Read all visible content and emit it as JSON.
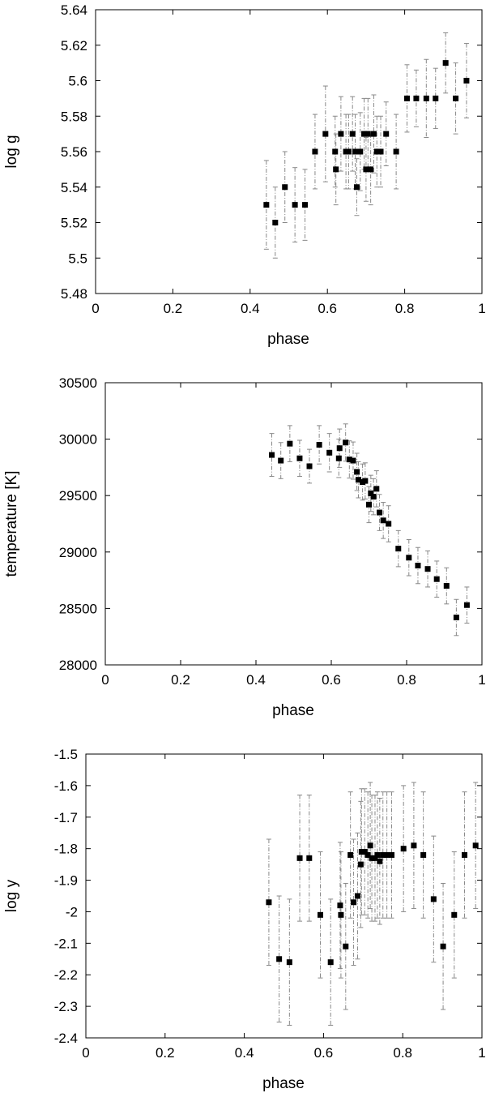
{
  "chart_data": [
    {
      "type": "scatter",
      "xlabel": "phase",
      "ylabel": "log g",
      "xlim": [
        0,
        1
      ],
      "ylim": [
        5.48,
        5.64
      ],
      "xticks": [
        0,
        0.2,
        0.4,
        0.6,
        0.8,
        1
      ],
      "xtick_labels": [
        "0",
        "0.2",
        "0.4",
        "0.6",
        "0.8",
        "1"
      ],
      "yticks": [
        5.48,
        5.5,
        5.52,
        5.54,
        5.56,
        5.58,
        5.6,
        5.62,
        5.64
      ],
      "ytick_labels": [
        "5.48",
        "5.5",
        "5.52",
        "5.54",
        "5.56",
        "5.58",
        "5.6",
        "5.62",
        "5.64"
      ],
      "grid": false,
      "series": [
        {
          "marker": "square",
          "color": "#000000",
          "errorbar_color": "#888888",
          "points": [
            {
              "x": 0.442,
              "y": 5.53,
              "err": 0.025
            },
            {
              "x": 0.465,
              "y": 5.52,
              "err": 0.02
            },
            {
              "x": 0.49,
              "y": 5.54,
              "err": 0.02
            },
            {
              "x": 0.516,
              "y": 5.53,
              "err": 0.021
            },
            {
              "x": 0.542,
              "y": 5.53,
              "err": 0.02
            },
            {
              "x": 0.568,
              "y": 5.56,
              "err": 0.021
            },
            {
              "x": 0.595,
              "y": 5.57,
              "err": 0.027
            },
            {
              "x": 0.62,
              "y": 5.56,
              "err": 0.02
            },
            {
              "x": 0.622,
              "y": 5.55,
              "err": 0.02
            },
            {
              "x": 0.635,
              "y": 5.57,
              "err": 0.021
            },
            {
              "x": 0.648,
              "y": 5.56,
              "err": 0.021
            },
            {
              "x": 0.655,
              "y": 5.56,
              "err": 0.021
            },
            {
              "x": 0.665,
              "y": 5.57,
              "err": 0.021
            },
            {
              "x": 0.672,
              "y": 5.56,
              "err": 0.021
            },
            {
              "x": 0.676,
              "y": 5.54,
              "err": 0.016
            },
            {
              "x": 0.685,
              "y": 5.56,
              "err": 0.022
            },
            {
              "x": 0.695,
              "y": 5.57,
              "err": 0.02
            },
            {
              "x": 0.7,
              "y": 5.55,
              "err": 0.018
            },
            {
              "x": 0.705,
              "y": 5.57,
              "err": 0.02
            },
            {
              "x": 0.712,
              "y": 5.55,
              "err": 0.02
            },
            {
              "x": 0.72,
              "y": 5.57,
              "err": 0.022
            },
            {
              "x": 0.728,
              "y": 5.56,
              "err": 0.02
            },
            {
              "x": 0.738,
              "y": 5.56,
              "err": 0.02
            },
            {
              "x": 0.752,
              "y": 5.57,
              "err": 0.018
            },
            {
              "x": 0.778,
              "y": 5.56,
              "err": 0.021
            },
            {
              "x": 0.806,
              "y": 5.59,
              "err": 0.019
            },
            {
              "x": 0.83,
              "y": 5.59,
              "err": 0.016
            },
            {
              "x": 0.856,
              "y": 5.59,
              "err": 0.022
            },
            {
              "x": 0.88,
              "y": 5.59,
              "err": 0.017
            },
            {
              "x": 0.906,
              "y": 5.61,
              "err": 0.017
            },
            {
              "x": 0.932,
              "y": 5.59,
              "err": 0.02
            },
            {
              "x": 0.96,
              "y": 5.6,
              "err": 0.021
            }
          ]
        }
      ]
    },
    {
      "type": "scatter",
      "xlabel": "phase",
      "ylabel": "temperature [K]",
      "xlim": [
        0,
        1
      ],
      "ylim": [
        28000,
        30500
      ],
      "xticks": [
        0,
        0.2,
        0.4,
        0.6,
        0.8,
        1
      ],
      "xtick_labels": [
        "0",
        "0.2",
        "0.4",
        "0.6",
        "0.8",
        "1"
      ],
      "yticks": [
        28000,
        28500,
        29000,
        29500,
        30000,
        30500
      ],
      "ytick_labels": [
        "28000",
        "28500",
        "29000",
        "29500",
        "30000",
        "30500"
      ],
      "grid": false,
      "series": [
        {
          "marker": "square",
          "color": "#000000",
          "errorbar_color": "#888888",
          "points": [
            {
              "x": 0.442,
              "y": 29860,
              "err": 190
            },
            {
              "x": 0.466,
              "y": 29810,
              "err": 160
            },
            {
              "x": 0.49,
              "y": 29960,
              "err": 160
            },
            {
              "x": 0.516,
              "y": 29830,
              "err": 160
            },
            {
              "x": 0.542,
              "y": 29760,
              "err": 150
            },
            {
              "x": 0.568,
              "y": 29950,
              "err": 170
            },
            {
              "x": 0.595,
              "y": 29880,
              "err": 170
            },
            {
              "x": 0.62,
              "y": 29830,
              "err": 170
            },
            {
              "x": 0.622,
              "y": 29920,
              "err": 170
            },
            {
              "x": 0.638,
              "y": 29970,
              "err": 165
            },
            {
              "x": 0.648,
              "y": 29820,
              "err": 165
            },
            {
              "x": 0.658,
              "y": 29810,
              "err": 165
            },
            {
              "x": 0.668,
              "y": 29710,
              "err": 165
            },
            {
              "x": 0.672,
              "y": 29640,
              "err": 160
            },
            {
              "x": 0.683,
              "y": 29620,
              "err": 160
            },
            {
              "x": 0.69,
              "y": 29630,
              "err": 160
            },
            {
              "x": 0.7,
              "y": 29420,
              "err": 160
            },
            {
              "x": 0.705,
              "y": 29520,
              "err": 160
            },
            {
              "x": 0.712,
              "y": 29490,
              "err": 160
            },
            {
              "x": 0.72,
              "y": 29560,
              "err": 160
            },
            {
              "x": 0.728,
              "y": 29350,
              "err": 160
            },
            {
              "x": 0.738,
              "y": 29280,
              "err": 160
            },
            {
              "x": 0.752,
              "y": 29250,
              "err": 160
            },
            {
              "x": 0.778,
              "y": 29030,
              "err": 160
            },
            {
              "x": 0.806,
              "y": 28950,
              "err": 160
            },
            {
              "x": 0.83,
              "y": 28880,
              "err": 160
            },
            {
              "x": 0.856,
              "y": 28850,
              "err": 160
            },
            {
              "x": 0.88,
              "y": 28760,
              "err": 160
            },
            {
              "x": 0.906,
              "y": 28700,
              "err": 160
            },
            {
              "x": 0.932,
              "y": 28420,
              "err": 160
            },
            {
              "x": 0.96,
              "y": 28530,
              "err": 160
            }
          ]
        }
      ]
    },
    {
      "type": "scatter",
      "xlabel": "phase",
      "ylabel": "log y",
      "xlim": [
        0,
        1
      ],
      "ylim": [
        -2.4,
        -1.5
      ],
      "xticks": [
        0,
        0.2,
        0.4,
        0.6,
        0.8,
        1
      ],
      "xtick_labels": [
        "0",
        "0.2",
        "0.4",
        "0.6",
        "0.8",
        "1"
      ],
      "yticks": [
        -2.4,
        -2.3,
        -2.2,
        -2.1,
        -2.0,
        -1.9,
        -1.8,
        -1.7,
        -1.6,
        -1.5
      ],
      "ytick_labels": [
        "-2.4",
        "-2.3",
        "-2.2",
        "-2.1",
        "-2",
        "-1.9",
        "-1.8",
        "-1.7",
        "-1.6",
        "-1.5"
      ],
      "grid": false,
      "series": [
        {
          "marker": "square",
          "color": "#000000",
          "errorbar_color": "#888888",
          "points": [
            {
              "x": 0.462,
              "y": -1.97,
              "err": 0.2
            },
            {
              "x": 0.488,
              "y": -2.15,
              "err": 0.2
            },
            {
              "x": 0.514,
              "y": -2.16,
              "err": 0.2
            },
            {
              "x": 0.54,
              "y": -1.83,
              "err": 0.2
            },
            {
              "x": 0.564,
              "y": -1.83,
              "err": 0.2
            },
            {
              "x": 0.592,
              "y": -2.01,
              "err": 0.2
            },
            {
              "x": 0.618,
              "y": -2.16,
              "err": 0.2
            },
            {
              "x": 0.642,
              "y": -1.98,
              "err": 0.2
            },
            {
              "x": 0.644,
              "y": -2.01,
              "err": 0.2
            },
            {
              "x": 0.656,
              "y": -2.11,
              "err": 0.2
            },
            {
              "x": 0.668,
              "y": -1.82,
              "err": 0.2
            },
            {
              "x": 0.676,
              "y": -1.97,
              "err": 0.2
            },
            {
              "x": 0.686,
              "y": -1.95,
              "err": 0.2
            },
            {
              "x": 0.694,
              "y": -1.85,
              "err": 0.2
            },
            {
              "x": 0.696,
              "y": -1.81,
              "err": 0.2
            },
            {
              "x": 0.704,
              "y": -1.81,
              "err": 0.2
            },
            {
              "x": 0.712,
              "y": -1.82,
              "err": 0.2
            },
            {
              "x": 0.718,
              "y": -1.79,
              "err": 0.2
            },
            {
              "x": 0.722,
              "y": -1.83,
              "err": 0.2
            },
            {
              "x": 0.73,
              "y": -1.83,
              "err": 0.2
            },
            {
              "x": 0.736,
              "y": -1.82,
              "err": 0.2
            },
            {
              "x": 0.742,
              "y": -1.84,
              "err": 0.2
            },
            {
              "x": 0.75,
              "y": -1.82,
              "err": 0.2
            },
            {
              "x": 0.76,
              "y": -1.82,
              "err": 0.2
            },
            {
              "x": 0.772,
              "y": -1.82,
              "err": 0.2
            },
            {
              "x": 0.802,
              "y": -1.8,
              "err": 0.2
            },
            {
              "x": 0.828,
              "y": -1.79,
              "err": 0.2
            },
            {
              "x": 0.852,
              "y": -1.82,
              "err": 0.2
            },
            {
              "x": 0.878,
              "y": -1.96,
              "err": 0.2
            },
            {
              "x": 0.902,
              "y": -2.11,
              "err": 0.2
            },
            {
              "x": 0.93,
              "y": -2.01,
              "err": 0.2
            },
            {
              "x": 0.956,
              "y": -1.82,
              "err": 0.2
            },
            {
              "x": 0.984,
              "y": -1.79,
              "err": 0.2
            }
          ]
        }
      ]
    }
  ]
}
